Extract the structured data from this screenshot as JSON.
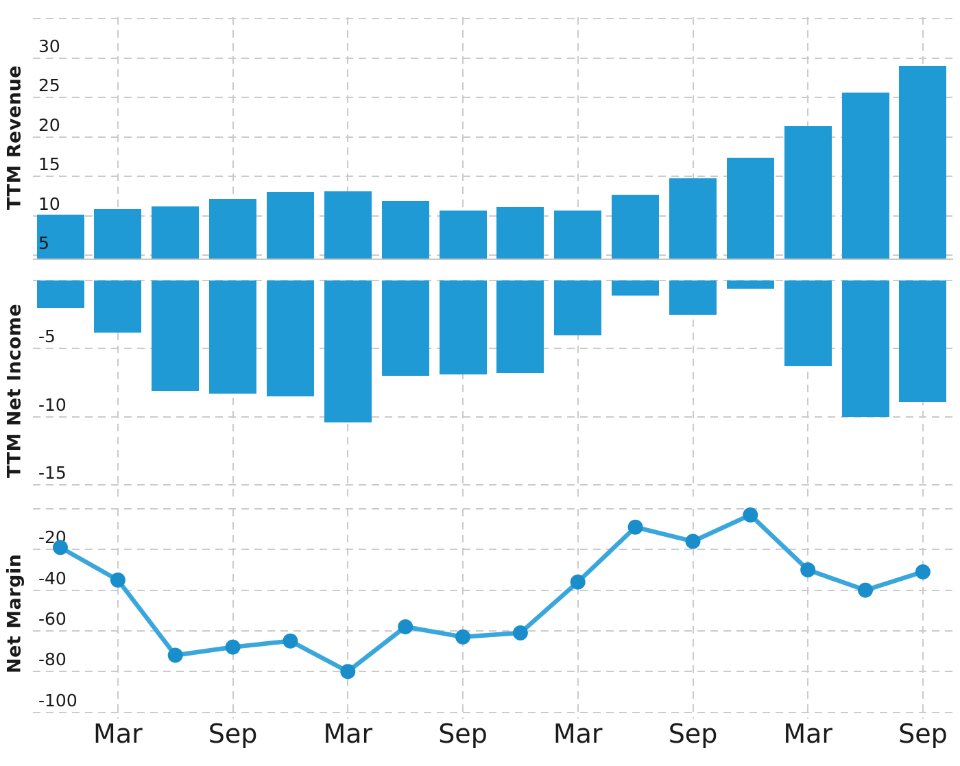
{
  "chart_data": [
    {
      "type": "bar",
      "title": "TTM Revenue",
      "values": [
        10.2,
        10.9,
        11.2,
        12.2,
        13.0,
        13.1,
        11.9,
        10.7,
        11.1,
        10.7,
        12.7,
        14.8,
        17.4,
        21.4,
        25.6,
        29.0
      ],
      "yticks_labeled": [
        30,
        25,
        20,
        15,
        10,
        5
      ],
      "ygrid": [
        35,
        30,
        25,
        20,
        15,
        10,
        5
      ],
      "ylim": [
        4.6,
        35.2
      ],
      "grid": true,
      "legend": "none"
    },
    {
      "type": "bar",
      "title": "TTM Net Income",
      "values": [
        -2.0,
        -3.8,
        -8.1,
        -8.3,
        -8.5,
        -10.4,
        -7.0,
        -6.9,
        -6.8,
        -4.0,
        -1.1,
        -2.5,
        -0.6,
        -6.3,
        -10.0,
        -8.9
      ],
      "yticks_labeled": [
        -5,
        -10,
        -15
      ],
      "ygrid": [
        0,
        -5,
        -10,
        -15
      ],
      "ylim": [
        -16.2,
        0
      ],
      "grid": true,
      "legend": "none"
    },
    {
      "type": "line",
      "title": "Net Margin",
      "values": [
        -19,
        -35,
        -72,
        -68,
        -65,
        -80,
        -58,
        -63,
        -61,
        -36,
        -9,
        -16,
        -3,
        -30,
        -40,
        -31
      ],
      "yticks_labeled": [
        -20,
        -40,
        -60,
        -80,
        -100
      ],
      "ygrid": [
        0,
        -20,
        -40,
        -60,
        -80,
        -100
      ],
      "ylim": [
        -103.2,
        0
      ],
      "grid": true,
      "markers": true,
      "legend": "none"
    }
  ],
  "x_axis": {
    "n_points": 16,
    "tick_labels": [
      "Mar",
      "Sep",
      "Mar",
      "Sep",
      "Mar",
      "Sep",
      "Mar",
      "Sep"
    ],
    "tick_indices": [
      1,
      3,
      5,
      7,
      9,
      11,
      13,
      15
    ]
  },
  "colors": {
    "bar": "#1f9ad4",
    "line": "#39a6dc",
    "marker": "#1a8dcb",
    "grid": "#cbcbcb",
    "axis_line": "#c8c8c8",
    "text": "#1a1a1a"
  }
}
